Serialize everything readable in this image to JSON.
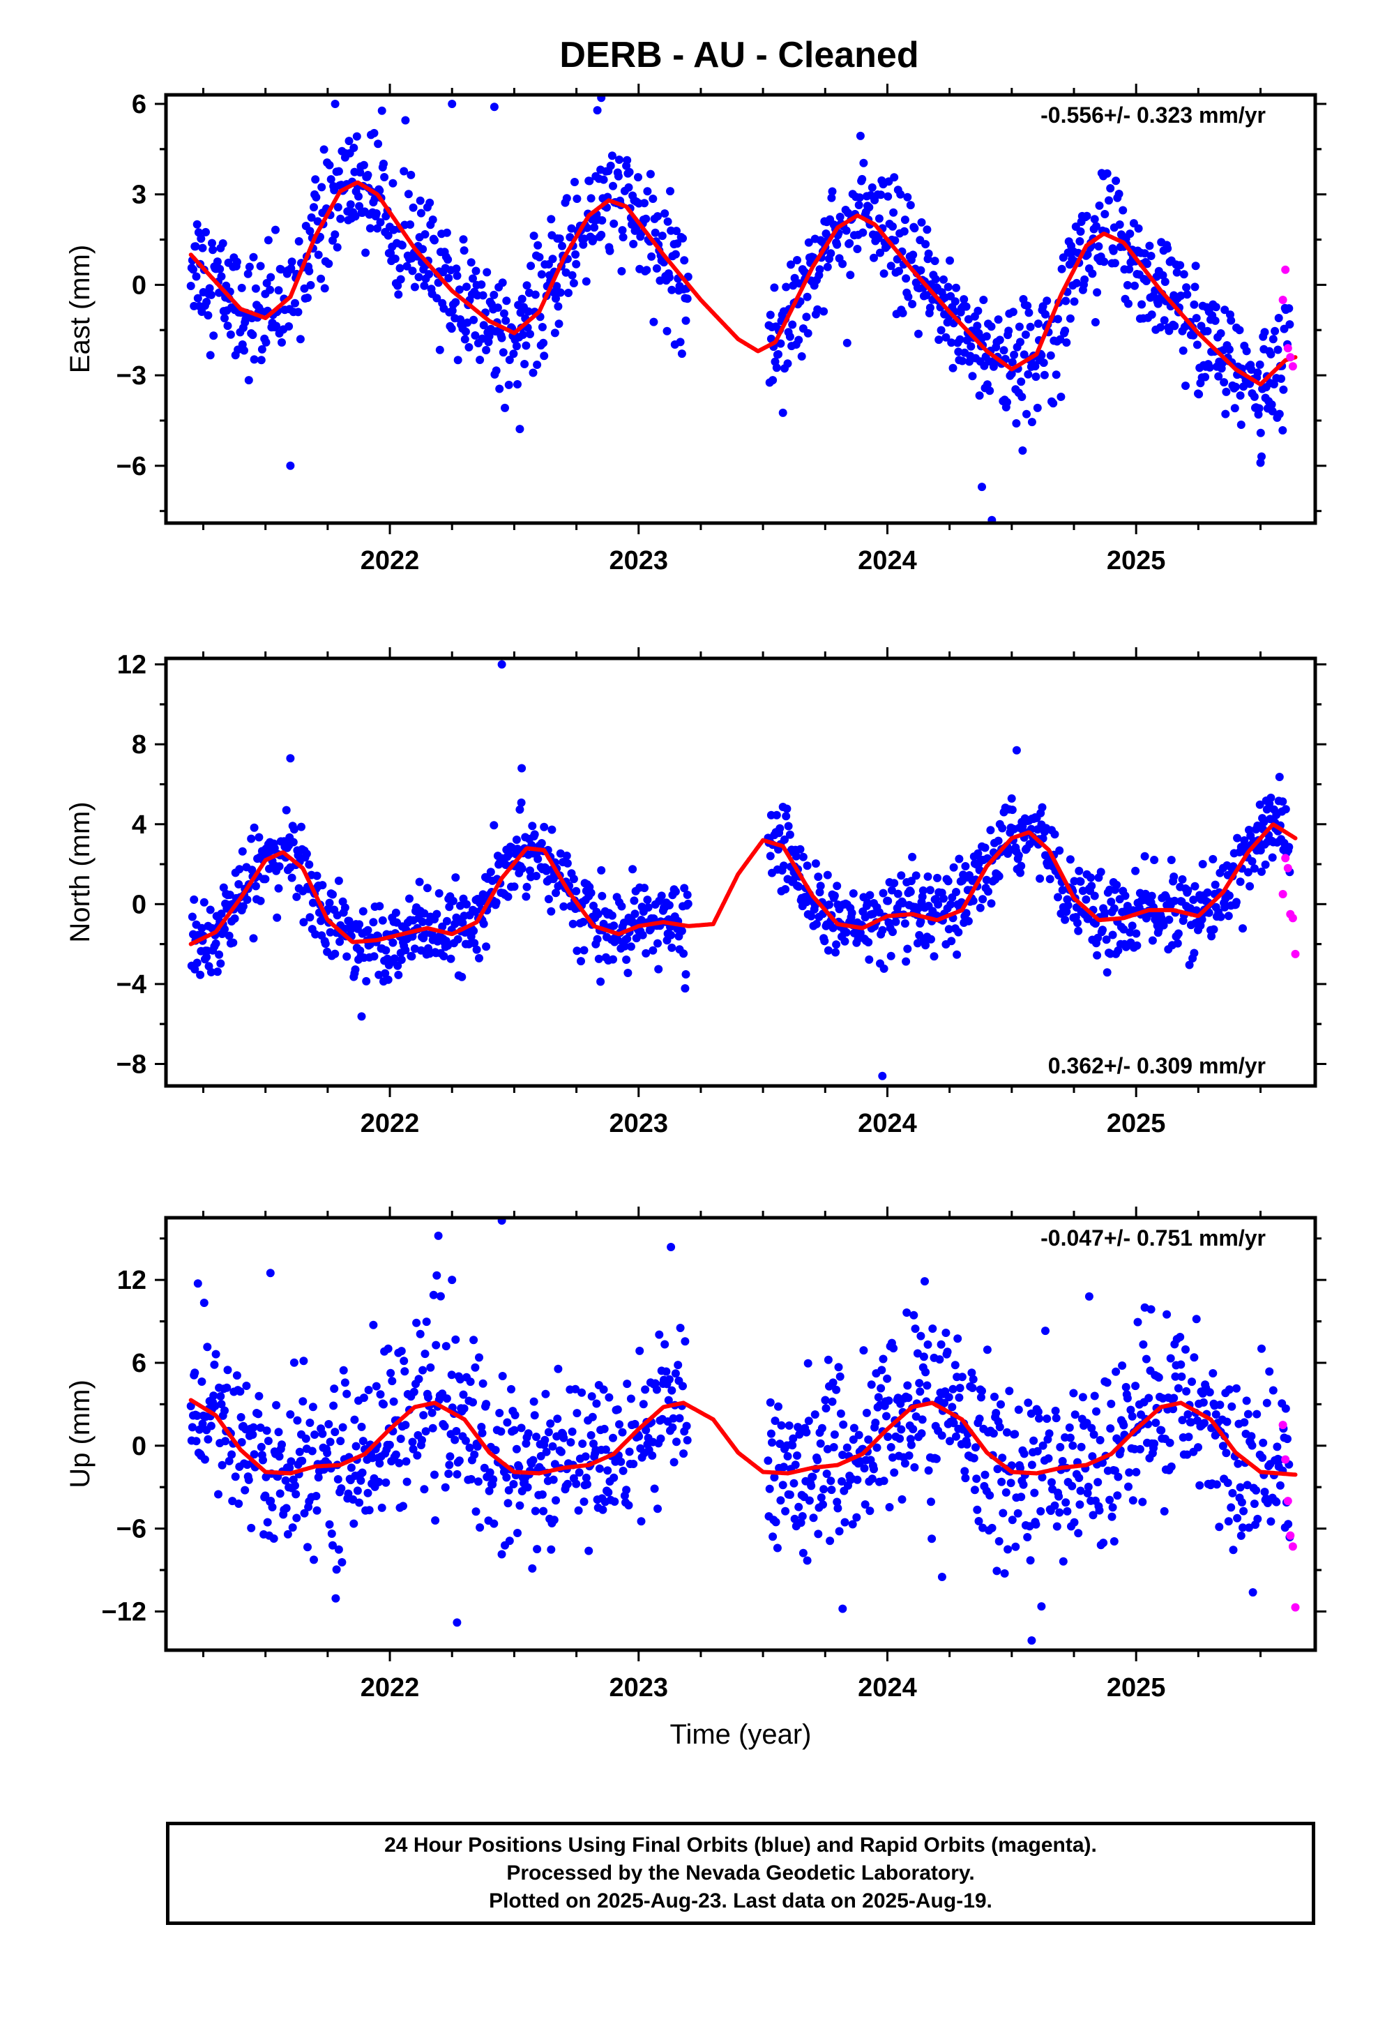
{
  "title": "DERB  - AU - Cleaned",
  "footer": {
    "line1": "24 Hour Positions Using Final Orbits (blue) and Rapid Orbits (magenta).",
    "line2": "Processed by the Nevada Geodetic Laboratory.",
    "line3": "Plotted on 2025-Aug-23. Last data on 2025-Aug-19."
  },
  "colors": {
    "final": "#0000ff",
    "rapid": "#ff00ff",
    "model": "#ff0000"
  },
  "chart_data": [
    {
      "type": "scatter",
      "ylabel": "East (mm)",
      "xlabel": "",
      "rate_label": "-0.556+/- 0.323 mm/yr",
      "rate_position": "top-right",
      "xlim": [
        2021.1,
        2025.72
      ],
      "ylim": [
        -7.9,
        6.3
      ],
      "xticks": [
        2022,
        2023,
        2024,
        2025
      ],
      "yticks": [
        -6,
        -3,
        0,
        3,
        6
      ],
      "ytick_labels": [
        "−6",
        "−3",
        "0",
        "3",
        "6"
      ],
      "data_span": [
        2021.2,
        2025.64
      ],
      "gaps": [
        [
          2023.2,
          2023.52
        ]
      ],
      "model": [
        [
          2021.2,
          1.0
        ],
        [
          2021.3,
          0.1
        ],
        [
          2021.4,
          -0.8
        ],
        [
          2021.5,
          -1.1
        ],
        [
          2021.6,
          -0.4
        ],
        [
          2021.7,
          1.6
        ],
        [
          2021.8,
          3.1
        ],
        [
          2021.87,
          3.4
        ],
        [
          2021.95,
          3.0
        ],
        [
          2022.1,
          1.2
        ],
        [
          2022.25,
          -0.2
        ],
        [
          2022.4,
          -1.2
        ],
        [
          2022.5,
          -1.6
        ],
        [
          2022.6,
          -0.9
        ],
        [
          2022.7,
          0.9
        ],
        [
          2022.8,
          2.3
        ],
        [
          2022.88,
          2.8
        ],
        [
          2022.95,
          2.6
        ],
        [
          2023.1,
          1.0
        ],
        [
          2023.25,
          -0.5
        ],
        [
          2023.4,
          -1.8
        ],
        [
          2023.48,
          -2.2
        ],
        [
          2023.55,
          -1.9
        ],
        [
          2023.7,
          0.6
        ],
        [
          2023.8,
          1.9
        ],
        [
          2023.88,
          2.3
        ],
        [
          2023.95,
          2.0
        ],
        [
          2024.1,
          0.5
        ],
        [
          2024.25,
          -0.9
        ],
        [
          2024.4,
          -2.2
        ],
        [
          2024.5,
          -2.8
        ],
        [
          2024.6,
          -2.3
        ],
        [
          2024.7,
          -0.3
        ],
        [
          2024.8,
          1.3
        ],
        [
          2024.87,
          1.7
        ],
        [
          2024.95,
          1.4
        ],
        [
          2025.1,
          -0.2
        ],
        [
          2025.25,
          -1.6
        ],
        [
          2025.4,
          -2.8
        ],
        [
          2025.5,
          -3.3
        ],
        [
          2025.6,
          -2.5
        ],
        [
          2025.64,
          -2.4
        ]
      ],
      "scatter_sigma": 1.0,
      "outliers_final": [
        [
          2021.6,
          -6.0
        ],
        [
          2021.78,
          6.0
        ],
        [
          2022.25,
          6.0
        ],
        [
          2022.42,
          5.9
        ],
        [
          2022.85,
          6.2
        ],
        [
          2024.38,
          -6.7
        ],
        [
          2024.42,
          -7.8
        ],
        [
          2025.5,
          -5.9
        ]
      ],
      "rapid": [
        [
          2025.6,
          0.5
        ],
        [
          2025.59,
          -0.5
        ],
        [
          2025.61,
          -2.1
        ],
        [
          2025.62,
          -2.4
        ],
        [
          2025.63,
          -2.7
        ]
      ]
    },
    {
      "type": "scatter",
      "ylabel": "North (mm)",
      "xlabel": "",
      "rate_label": "0.362+/- 0.309 mm/yr",
      "rate_position": "bottom-right",
      "xlim": [
        2021.1,
        2025.72
      ],
      "ylim": [
        -9.1,
        12.3
      ],
      "xticks": [
        2022,
        2023,
        2024,
        2025
      ],
      "yticks": [
        -8,
        -4,
        0,
        4,
        8,
        12
      ],
      "ytick_labels": [
        "−8",
        "−4",
        "0",
        "4",
        "8",
        "12"
      ],
      "data_span": [
        2021.2,
        2025.64
      ],
      "gaps": [
        [
          2023.2,
          2023.52
        ]
      ],
      "model": [
        [
          2021.2,
          -2.0
        ],
        [
          2021.3,
          -1.4
        ],
        [
          2021.4,
          0.3
        ],
        [
          2021.5,
          2.2
        ],
        [
          2021.57,
          2.6
        ],
        [
          2021.65,
          1.8
        ],
        [
          2021.75,
          -0.8
        ],
        [
          2021.85,
          -1.9
        ],
        [
          2021.95,
          -1.8
        ],
        [
          2022.05,
          -1.5
        ],
        [
          2022.15,
          -1.2
        ],
        [
          2022.25,
          -1.5
        ],
        [
          2022.35,
          -0.9
        ],
        [
          2022.45,
          1.3
        ],
        [
          2022.55,
          2.8
        ],
        [
          2022.62,
          2.7
        ],
        [
          2022.72,
          0.6
        ],
        [
          2022.82,
          -1.1
        ],
        [
          2022.92,
          -1.5
        ],
        [
          2023.0,
          -1.1
        ],
        [
          2023.1,
          -0.9
        ],
        [
          2023.2,
          -1.1
        ],
        [
          2023.3,
          -1.0
        ],
        [
          2023.4,
          1.5
        ],
        [
          2023.5,
          3.2
        ],
        [
          2023.58,
          2.9
        ],
        [
          2023.7,
          0.4
        ],
        [
          2023.8,
          -1.0
        ],
        [
          2023.9,
          -1.2
        ],
        [
          2024.0,
          -0.6
        ],
        [
          2024.1,
          -0.5
        ],
        [
          2024.2,
          -0.8
        ],
        [
          2024.3,
          -0.3
        ],
        [
          2024.4,
          1.9
        ],
        [
          2024.5,
          3.3
        ],
        [
          2024.57,
          3.6
        ],
        [
          2024.65,
          2.7
        ],
        [
          2024.75,
          0.3
        ],
        [
          2024.85,
          -0.8
        ],
        [
          2024.95,
          -0.7
        ],
        [
          2025.05,
          -0.3
        ],
        [
          2025.15,
          -0.3
        ],
        [
          2025.25,
          -0.6
        ],
        [
          2025.35,
          0.6
        ],
        [
          2025.45,
          2.6
        ],
        [
          2025.55,
          4.0
        ],
        [
          2025.64,
          3.3
        ]
      ],
      "scatter_sigma": 1.0,
      "outliers_final": [
        [
          2021.6,
          7.3
        ],
        [
          2022.45,
          12.0
        ],
        [
          2022.53,
          6.8
        ],
        [
          2023.98,
          -8.6
        ],
        [
          2024.52,
          7.7
        ]
      ],
      "rapid": [
        [
          2025.6,
          2.3
        ],
        [
          2025.61,
          1.8
        ],
        [
          2025.59,
          0.5
        ],
        [
          2025.62,
          -0.5
        ],
        [
          2025.63,
          -0.7
        ],
        [
          2025.64,
          -2.5
        ]
      ]
    },
    {
      "type": "scatter",
      "ylabel": "Up (mm)",
      "xlabel": "Time (year)",
      "rate_label": "-0.047+/- 0.751 mm/yr",
      "rate_position": "top-right",
      "xlim": [
        2021.1,
        2025.72
      ],
      "ylim": [
        -14.8,
        16.5
      ],
      "xticks": [
        2022,
        2023,
        2024,
        2025
      ],
      "yticks": [
        -12,
        -6,
        0,
        6,
        12
      ],
      "ytick_labels": [
        "−12",
        "−6",
        "0",
        "6",
        "12"
      ],
      "data_span": [
        2021.2,
        2025.64
      ],
      "gaps": [
        [
          2023.2,
          2023.52
        ]
      ],
      "model": [
        [
          2021.2,
          3.3
        ],
        [
          2021.3,
          2.2
        ],
        [
          2021.4,
          -0.3
        ],
        [
          2021.5,
          -1.9
        ],
        [
          2021.6,
          -2.0
        ],
        [
          2021.7,
          -1.5
        ],
        [
          2021.8,
          -1.4
        ],
        [
          2021.9,
          -0.6
        ],
        [
          2022.0,
          1.2
        ],
        [
          2022.1,
          2.8
        ],
        [
          2022.18,
          3.1
        ],
        [
          2022.3,
          1.9
        ],
        [
          2022.4,
          -0.5
        ],
        [
          2022.5,
          -1.9
        ],
        [
          2022.6,
          -2.0
        ],
        [
          2022.7,
          -1.6
        ],
        [
          2022.8,
          -1.4
        ],
        [
          2022.9,
          -0.6
        ],
        [
          2023.0,
          1.2
        ],
        [
          2023.1,
          2.8
        ],
        [
          2023.18,
          3.1
        ],
        [
          2023.3,
          1.9
        ],
        [
          2023.4,
          -0.5
        ],
        [
          2023.5,
          -1.9
        ],
        [
          2023.6,
          -2.0
        ],
        [
          2023.7,
          -1.6
        ],
        [
          2023.8,
          -1.4
        ],
        [
          2023.9,
          -0.6
        ],
        [
          2024.0,
          1.2
        ],
        [
          2024.1,
          2.8
        ],
        [
          2024.18,
          3.1
        ],
        [
          2024.3,
          1.9
        ],
        [
          2024.4,
          -0.5
        ],
        [
          2024.5,
          -1.9
        ],
        [
          2024.6,
          -2.0
        ],
        [
          2024.7,
          -1.6
        ],
        [
          2024.8,
          -1.4
        ],
        [
          2024.9,
          -0.6
        ],
        [
          2025.0,
          1.2
        ],
        [
          2025.1,
          2.8
        ],
        [
          2025.18,
          3.1
        ],
        [
          2025.3,
          1.9
        ],
        [
          2025.4,
          -0.5
        ],
        [
          2025.5,
          -1.9
        ],
        [
          2025.64,
          -2.1
        ]
      ],
      "scatter_sigma": 3.2,
      "outliers_final": [
        [
          2021.52,
          12.5
        ],
        [
          2022.25,
          12.0
        ],
        [
          2022.27,
          -12.8
        ],
        [
          2022.45,
          16.3
        ],
        [
          2023.82,
          -11.8
        ],
        [
          2024.15,
          11.9
        ],
        [
          2024.22,
          -9.5
        ],
        [
          2024.58,
          -14.1
        ]
      ],
      "rapid": [
        [
          2025.59,
          1.5
        ],
        [
          2025.6,
          -1.0
        ],
        [
          2025.61,
          -4.0
        ],
        [
          2025.62,
          -6.5
        ],
        [
          2025.63,
          -7.3
        ],
        [
          2025.64,
          -11.7
        ]
      ]
    }
  ]
}
